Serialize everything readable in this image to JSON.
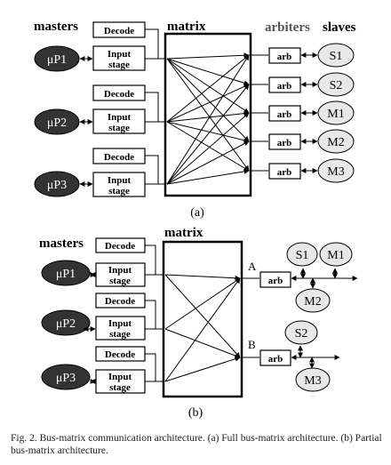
{
  "diagram_a": {
    "masters_label": "masters",
    "matrix_label": "matrix",
    "arbiters_label": "arbiters",
    "slaves_label": "slaves",
    "decode_label": "Decode",
    "input_stage_line1": "Input",
    "input_stage_line2": "stage",
    "arb_label": "arb",
    "masters": [
      "μP1",
      "μP2",
      "μP3"
    ],
    "slaves": [
      "S1",
      "S2",
      "M1",
      "M2",
      "M3"
    ],
    "sub_label": "(a)"
  },
  "diagram_b": {
    "masters_label": "masters",
    "matrix_label": "matrix",
    "decode_label": "Decode",
    "input_stage_line1": "Input",
    "input_stage_line2": "stage",
    "arb_label": "arb",
    "masters": [
      "μP1",
      "μP2",
      "μP3"
    ],
    "point_a": "A",
    "point_b": "B",
    "slaves_a": [
      "S1",
      "M1",
      "M2"
    ],
    "slaves_b": [
      "S2",
      "M3"
    ],
    "sub_label": "(b)"
  },
  "caption": "Fig. 2.   Bus-matrix communication architecture. (a) Full bus-matrix architecture. (b) Partial bus-matrix architecture."
}
